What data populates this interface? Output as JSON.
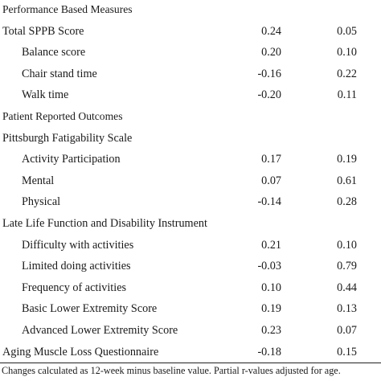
{
  "rows": [
    {
      "label": "Performance Based Measures",
      "v1": "",
      "v2": "",
      "type": "section"
    },
    {
      "label": "Total SPPB Score",
      "v1": "0.24",
      "v2": "0.05",
      "type": "main"
    },
    {
      "label": "Balance score",
      "v1": "0.20",
      "v2": "0.10",
      "type": "indent"
    },
    {
      "label": "Chair stand time",
      "v1": "-0.16",
      "v2": "0.22",
      "type": "indent"
    },
    {
      "label": "Walk time",
      "v1": "-0.20",
      "v2": "0.11",
      "type": "indent"
    },
    {
      "label": "Patient Reported Outcomes",
      "v1": "",
      "v2": "",
      "type": "section"
    },
    {
      "label": "Pittsburgh Fatigability Scale",
      "v1": "",
      "v2": "",
      "type": "main"
    },
    {
      "label": "Activity Participation",
      "v1": "0.17",
      "v2": "0.19",
      "type": "indent"
    },
    {
      "label": "Mental",
      "v1": "0.07",
      "v2": "0.61",
      "type": "indent"
    },
    {
      "label": "Physical",
      "v1": "-0.14",
      "v2": "0.28",
      "type": "indent"
    },
    {
      "label": "Late Life Function and Disability Instrument",
      "v1": "",
      "v2": "",
      "type": "main"
    },
    {
      "label": "Difficulty with activities",
      "v1": "0.21",
      "v2": "0.10",
      "type": "indent"
    },
    {
      "label": "Limited doing activities",
      "v1": "-0.03",
      "v2": "0.79",
      "type": "indent"
    },
    {
      "label": "Frequency of activities",
      "v1": "0.10",
      "v2": "0.44",
      "type": "indent"
    },
    {
      "label": "Basic Lower Extremity Score",
      "v1": "0.19",
      "v2": "0.13",
      "type": "indent"
    },
    {
      "label": "Advanced Lower Extremity Score",
      "v1": "0.23",
      "v2": "0.07",
      "type": "indent"
    },
    {
      "label": "Aging Muscle Loss Questionnaire",
      "v1": "-0.18",
      "v2": "0.15",
      "type": "main"
    }
  ],
  "footnote": "Changes calculated as 12-week minus baseline value. Partial r-values adjusted for age."
}
